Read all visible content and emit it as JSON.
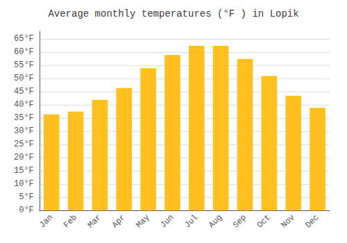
{
  "chart_data": {
    "type": "bar",
    "title": "Average monthly temperatures (°F ) in Lopik",
    "categories": [
      "Jan",
      "Feb",
      "Mar",
      "Apr",
      "May",
      "Jun",
      "Jul",
      "Aug",
      "Sep",
      "Oct",
      "Nov",
      "Dec"
    ],
    "values": [
      36.5,
      37.5,
      42.0,
      46.5,
      54.0,
      59.0,
      62.5,
      62.5,
      57.5,
      51.0,
      43.5,
      39.0
    ],
    "color": "#FFC020",
    "ylim": [
      0,
      68
    ],
    "yticks": [
      {
        "value": 0,
        "label": "0°F"
      },
      {
        "value": 5,
        "label": "5°F"
      },
      {
        "value": 10,
        "label": "10°F"
      },
      {
        "value": 15,
        "label": "15°F"
      },
      {
        "value": 20,
        "label": "20°F"
      },
      {
        "value": 25,
        "label": "25°F"
      },
      {
        "value": 30,
        "label": "30°F"
      },
      {
        "value": 35,
        "label": "35°F"
      },
      {
        "value": 40,
        "label": "40°F"
      },
      {
        "value": 45,
        "label": "45°F"
      },
      {
        "value": 50,
        "label": "50°F"
      },
      {
        "value": 55,
        "label": "55°F"
      },
      {
        "value": 60,
        "label": "60°F"
      },
      {
        "value": 65,
        "label": "65°F"
      }
    ],
    "grid": true
  }
}
